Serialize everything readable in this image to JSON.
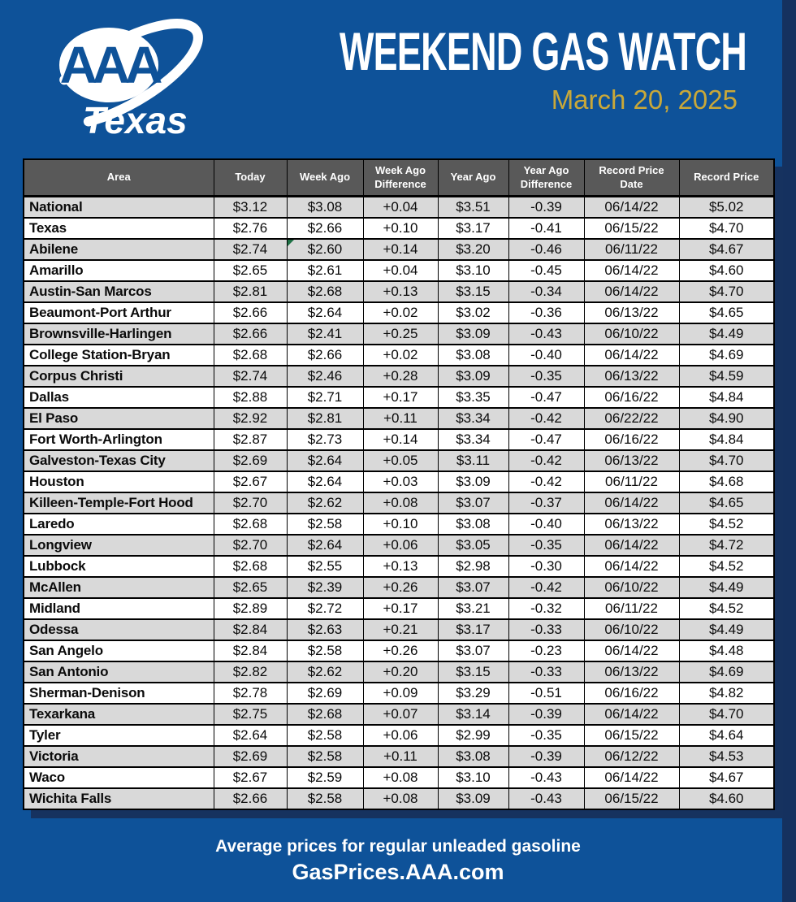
{
  "brand": {
    "logo_letters": "AAA",
    "logo_region": "Texas"
  },
  "header": {
    "title": "WEEKEND GAS WATCH",
    "date": "March 20, 2025"
  },
  "chart_data": {
    "type": "table",
    "title": "Weekend Gas Watch — AAA Texas — March 20, 2025",
    "columns": [
      "Area",
      "Today",
      "Week Ago",
      "Week Ago Difference",
      "Year Ago",
      "Year Ago Difference",
      "Record Price Date",
      "Record Price"
    ],
    "rows": [
      [
        "National",
        "$3.12",
        "$3.08",
        "+0.04",
        "$3.51",
        "-0.39",
        "06/14/22",
        "$5.02"
      ],
      [
        "Texas",
        "$2.76",
        "$2.66",
        "+0.10",
        "$3.17",
        "-0.41",
        "06/15/22",
        "$4.70"
      ],
      [
        "Abilene",
        "$2.74",
        "$2.60",
        "+0.14",
        "$3.20",
        "-0.46",
        "06/11/22",
        "$4.67"
      ],
      [
        "Amarillo",
        "$2.65",
        "$2.61",
        "+0.04",
        "$3.10",
        "-0.45",
        "06/14/22",
        "$4.60"
      ],
      [
        "Austin-San Marcos",
        "$2.81",
        "$2.68",
        "+0.13",
        "$3.15",
        "-0.34",
        "06/14/22",
        "$4.70"
      ],
      [
        "Beaumont-Port Arthur",
        "$2.66",
        "$2.64",
        "+0.02",
        "$3.02",
        "-0.36",
        "06/13/22",
        "$4.65"
      ],
      [
        "Brownsville-Harlingen",
        "$2.66",
        "$2.41",
        "+0.25",
        "$3.09",
        "-0.43",
        "06/10/22",
        "$4.49"
      ],
      [
        "College Station-Bryan",
        "$2.68",
        "$2.66",
        "+0.02",
        "$3.08",
        "-0.40",
        "06/14/22",
        "$4.69"
      ],
      [
        "Corpus Christi",
        "$2.74",
        "$2.46",
        "+0.28",
        "$3.09",
        "-0.35",
        "06/13/22",
        "$4.59"
      ],
      [
        "Dallas",
        "$2.88",
        "$2.71",
        "+0.17",
        "$3.35",
        "-0.47",
        "06/16/22",
        "$4.84"
      ],
      [
        "El Paso",
        "$2.92",
        "$2.81",
        "+0.11",
        "$3.34",
        "-0.42",
        "06/22/22",
        "$4.90"
      ],
      [
        "Fort Worth-Arlington",
        "$2.87",
        "$2.73",
        "+0.14",
        "$3.34",
        "-0.47",
        "06/16/22",
        "$4.84"
      ],
      [
        "Galveston-Texas City",
        "$2.69",
        "$2.64",
        "+0.05",
        "$3.11",
        "-0.42",
        "06/13/22",
        "$4.70"
      ],
      [
        "Houston",
        "$2.67",
        "$2.64",
        "+0.03",
        "$3.09",
        "-0.42",
        "06/11/22",
        "$4.68"
      ],
      [
        "Killeen-Temple-Fort Hood",
        "$2.70",
        "$2.62",
        "+0.08",
        "$3.07",
        "-0.37",
        "06/14/22",
        "$4.65"
      ],
      [
        "Laredo",
        "$2.68",
        "$2.58",
        "+0.10",
        "$3.08",
        "-0.40",
        "06/13/22",
        "$4.52"
      ],
      [
        "Longview",
        "$2.70",
        "$2.64",
        "+0.06",
        "$3.05",
        "-0.35",
        "06/14/22",
        "$4.72"
      ],
      [
        "Lubbock",
        "$2.68",
        "$2.55",
        "+0.13",
        "$2.98",
        "-0.30",
        "06/14/22",
        "$4.52"
      ],
      [
        "McAllen",
        "$2.65",
        "$2.39",
        "+0.26",
        "$3.07",
        "-0.42",
        "06/10/22",
        "$4.49"
      ],
      [
        "Midland",
        "$2.89",
        "$2.72",
        "+0.17",
        "$3.21",
        "-0.32",
        "06/11/22",
        "$4.52"
      ],
      [
        "Odessa",
        "$2.84",
        "$2.63",
        "+0.21",
        "$3.17",
        "-0.33",
        "06/10/22",
        "$4.49"
      ],
      [
        "San Angelo",
        "$2.84",
        "$2.58",
        "+0.26",
        "$3.07",
        "-0.23",
        "06/14/22",
        "$4.48"
      ],
      [
        "San Antonio",
        "$2.82",
        "$2.62",
        "+0.20",
        "$3.15",
        "-0.33",
        "06/13/22",
        "$4.69"
      ],
      [
        "Sherman-Denison",
        "$2.78",
        "$2.69",
        "+0.09",
        "$3.29",
        "-0.51",
        "06/16/22",
        "$4.82"
      ],
      [
        "Texarkana",
        "$2.75",
        "$2.68",
        "+0.07",
        "$3.14",
        "-0.39",
        "06/14/22",
        "$4.70"
      ],
      [
        "Tyler",
        "$2.64",
        "$2.58",
        "+0.06",
        "$2.99",
        "-0.35",
        "06/15/22",
        "$4.64"
      ],
      [
        "Victoria",
        "$2.69",
        "$2.58",
        "+0.11",
        "$3.08",
        "-0.39",
        "06/12/22",
        "$4.53"
      ],
      [
        "Waco",
        "$2.67",
        "$2.59",
        "+0.08",
        "$3.10",
        "-0.43",
        "06/14/22",
        "$4.67"
      ],
      [
        "Wichita Falls",
        "$2.66",
        "$2.58",
        "+0.08",
        "$3.09",
        "-0.43",
        "06/15/22",
        "$4.60"
      ]
    ],
    "row_striping": "first row gray, alternating gray/white",
    "comment_marker": {
      "row_index": 2,
      "col_index": 2,
      "note": "small green corner flag on Abilene Week Ago cell"
    }
  },
  "footer": {
    "line1": "Average prices for regular unleaded gasoline",
    "line2": "GasPrices.AAA.com"
  },
  "colors": {
    "background_blue": "#0E5299",
    "shadow_navy": "#16325F",
    "header_gray": "#595959",
    "row_alt_gray": "#D9D9D9",
    "date_gold": "#C9A839",
    "marker_green": "#1E7145",
    "text_white": "#FFFFFF",
    "table_border": "#000000"
  }
}
